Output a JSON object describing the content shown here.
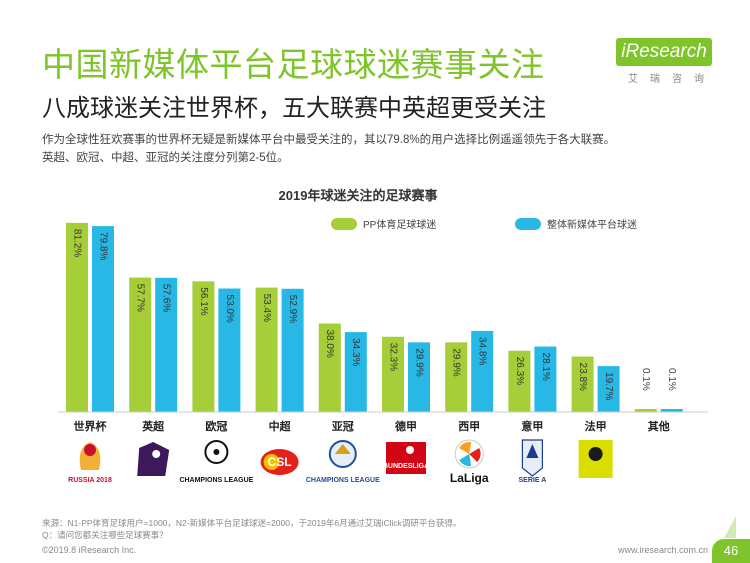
{
  "header": {
    "title": "中国新媒体平台足球球迷赛事关注",
    "subtitle": "八成球迷关注世界杯，五大联赛中英超更受关注",
    "desc_line1": "作为全球性狂欢赛事的世界杯无疑是新媒体平台中最受关注的，其以79.8%的用户选择比例遥遥领先于各大联赛。",
    "desc_line2": "英超、欧冠、中超、亚冠的关注度分列第2-5位。"
  },
  "logo": {
    "word": "iResearch",
    "cn": "艾瑞咨询"
  },
  "chart_data": {
    "type": "bar",
    "title": "2019年球迷关注的足球赛事",
    "categories": [
      "世界杯",
      "英超",
      "欧冠",
      "中超",
      "亚冠",
      "德甲",
      "西甲",
      "意甲",
      "法甲",
      "其他"
    ],
    "series": [
      {
        "name": "PP体育足球球迷",
        "values": [
          81.2,
          57.7,
          56.1,
          53.4,
          38.0,
          32.3,
          29.9,
          26.3,
          23.8,
          0.1
        ],
        "labels": [
          "81.2%",
          "57.7%",
          "56.1%",
          "53.4%",
          "38.0%",
          "32.3%",
          "29.9%",
          "26.3%",
          "23.8%",
          "0.1%"
        ]
      },
      {
        "name": "整体新媒体平台球迷",
        "values": [
          79.8,
          57.6,
          53.0,
          52.9,
          34.3,
          29.9,
          34.8,
          28.1,
          19.7,
          0.1
        ],
        "labels": [
          "79.8%",
          "57.6%",
          "53.0%",
          "52.9%",
          "34.3%",
          "29.9%",
          "34.8%",
          "28.1%",
          "19.7%",
          "0.1%"
        ]
      }
    ],
    "ylim": [
      0,
      85
    ],
    "grid": false,
    "legend_position": "top-right",
    "colors": [
      "#a6ce39",
      "#27b8e6"
    ]
  },
  "logos": [
    {
      "icon": "fifa-world-cup-icon",
      "text": "RUSSIA 2018",
      "color": "#c8102e"
    },
    {
      "icon": "premier-league-lion-icon",
      "text": "",
      "color": "#3d185b"
    },
    {
      "icon": "champions-league-star-icon",
      "text": "CHAMPIONS LEAGUE",
      "color": "#111111"
    },
    {
      "icon": "csl-ball-icon",
      "text": "CSL",
      "color": "#e2231a"
    },
    {
      "icon": "afc-champions-icon",
      "text": "CHAMPIONS LEAGUE",
      "color": "#1e4fa3"
    },
    {
      "icon": "bundesliga-player-icon",
      "text": "BUNDESLIGA",
      "color": "#d20515"
    },
    {
      "icon": "laliga-ball-icon",
      "text": "LaLiga",
      "color": "#111111"
    },
    {
      "icon": "serie-a-icon",
      "text": "SERIE A",
      "color": "#1a3c8c"
    },
    {
      "icon": "ligue1-icon",
      "text": "",
      "color": "#dadd00"
    }
  ],
  "footer": {
    "source": "来源：N1-PP体育足球用户=1000，N2-新媒体平台足球球迷=2000，于2019年6月通过艾瑞iClick调研平台获得。",
    "question": "Q：请问您都关注哪些足球赛事？",
    "copyright": "©2019.8 iResearch Inc.",
    "website": "www.iresearch.com.cn",
    "page": "46"
  }
}
